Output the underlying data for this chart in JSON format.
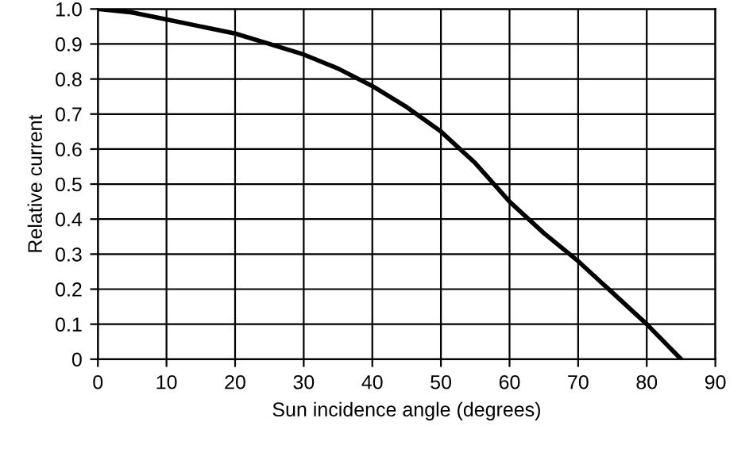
{
  "chart_data": {
    "type": "line",
    "xlabel": "Sun incidence angle (degrees)",
    "ylabel": "Relative current",
    "x": [
      0,
      5,
      10,
      15,
      20,
      25,
      30,
      35,
      40,
      45,
      50,
      55,
      60,
      65,
      70,
      75,
      80,
      85
    ],
    "series": [
      {
        "color": "#000000",
        "values": [
          1.0,
          0.99,
          0.97,
          0.95,
          0.93,
          0.9,
          0.87,
          0.83,
          0.78,
          0.72,
          0.65,
          0.56,
          0.45,
          0.36,
          0.28,
          0.19,
          0.1,
          0.0
        ]
      }
    ],
    "xlim": [
      0,
      90
    ],
    "ylim": [
      0,
      1.0
    ],
    "xticks": [
      0,
      10,
      20,
      30,
      40,
      50,
      60,
      70,
      80,
      90
    ],
    "yticks": [
      0,
      0.1,
      0.2,
      0.3,
      0.4,
      0.5,
      0.6,
      0.7,
      0.8,
      0.9,
      {
        "value": 1.0,
        "label": "1.0"
      }
    ],
    "grid": true,
    "marker": "none",
    "line_style": "solid",
    "legend": false
  }
}
